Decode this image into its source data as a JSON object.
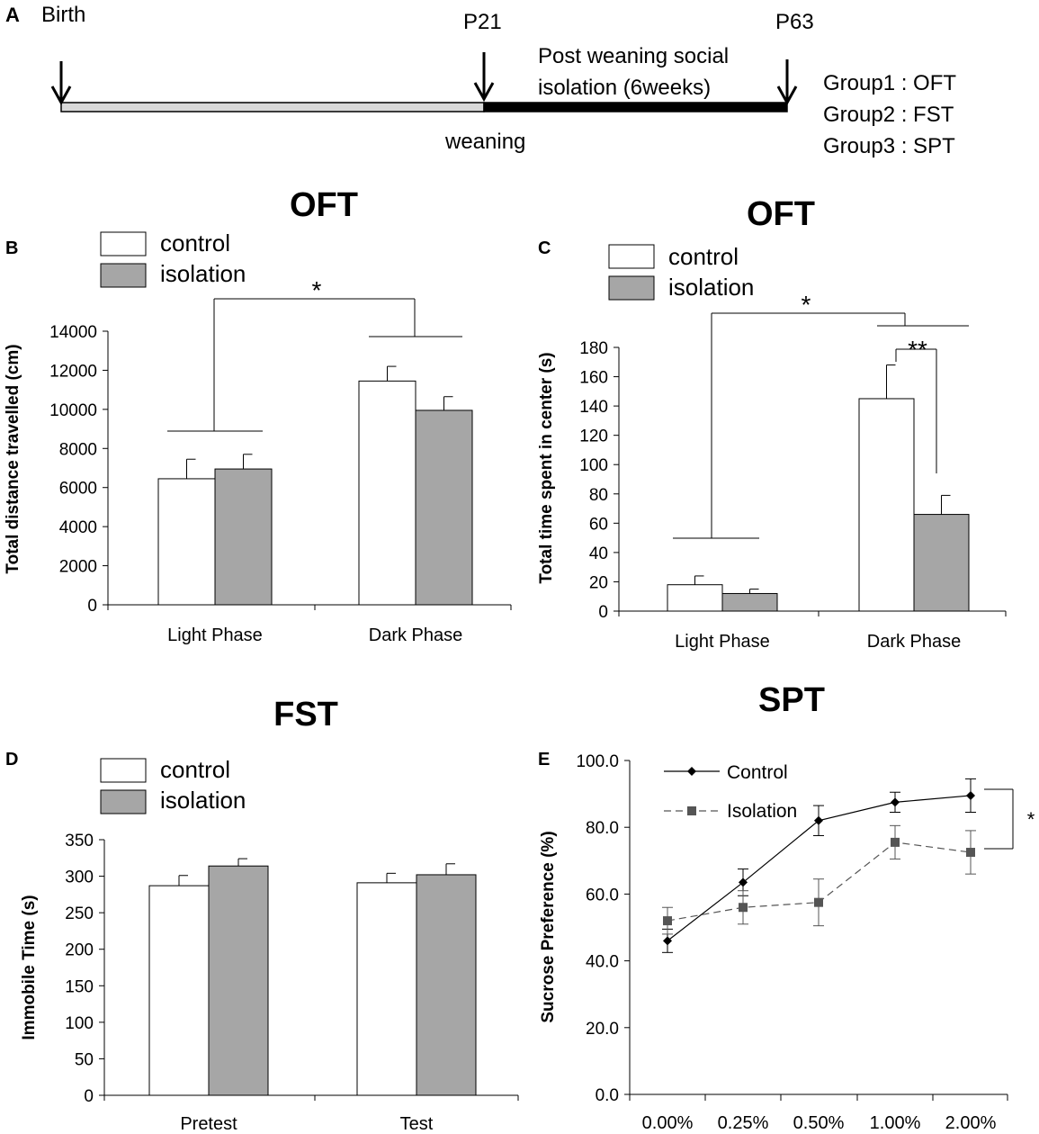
{
  "timeline": {
    "panel_label": "A",
    "birth": "Birth",
    "p21": "P21",
    "p63": "P63",
    "isolation_line1": "Post weaning social",
    "isolation_line2": "isolation (6weeks)",
    "weaning": "weaning",
    "groups": [
      "Group1 :  OFT",
      "Group2 :  FST",
      "Group3 :  SPT"
    ]
  },
  "colors": {
    "control": "#ffffff",
    "isolation": "#a6a6a6",
    "timeline_early": "#d9d9d9",
    "timeline_late": "#000000"
  },
  "chart_data": [
    {
      "id": "B",
      "panel_label": "B",
      "type": "bar",
      "title": "OFT",
      "ylabel": "Total distance travelled (cm)",
      "categories": [
        "Light Phase",
        "Dark Phase"
      ],
      "ylim": [
        0,
        14000
      ],
      "yticks": [
        0,
        2000,
        4000,
        6000,
        8000,
        10000,
        12000,
        14000
      ],
      "series": [
        {
          "name": "control",
          "values": [
            6450,
            11450
          ],
          "errors": [
            1000,
            750
          ]
        },
        {
          "name": "isolation",
          "values": [
            6950,
            9950
          ],
          "errors": [
            750,
            700
          ]
        }
      ],
      "legend": [
        "control",
        "isolation"
      ],
      "annotations": [
        "*"
      ]
    },
    {
      "id": "C",
      "panel_label": "C",
      "type": "bar",
      "title": "OFT",
      "ylabel": "Total time spent in center (s)",
      "categories": [
        "Light Phase",
        "Dark Phase"
      ],
      "ylim": [
        0,
        180
      ],
      "yticks": [
        0,
        20,
        40,
        60,
        80,
        100,
        120,
        140,
        160,
        180
      ],
      "series": [
        {
          "name": "control",
          "values": [
            18,
            145
          ],
          "errors": [
            6,
            23
          ]
        },
        {
          "name": "isolation",
          "values": [
            12,
            66
          ],
          "errors": [
            3,
            13
          ]
        }
      ],
      "legend": [
        "control",
        "isolation"
      ],
      "annotations": [
        "*",
        "**"
      ]
    },
    {
      "id": "D",
      "panel_label": "D",
      "type": "bar",
      "title": "FST",
      "ylabel": "Immobile Time (s)",
      "categories": [
        "Pretest",
        "Test"
      ],
      "ylim": [
        0,
        350
      ],
      "yticks": [
        0,
        50,
        100,
        150,
        200,
        250,
        300,
        350
      ],
      "series": [
        {
          "name": "control",
          "values": [
            287,
            291
          ],
          "errors": [
            14,
            13
          ]
        },
        {
          "name": "isolation",
          "values": [
            314,
            302
          ],
          "errors": [
            10,
            15
          ]
        }
      ],
      "legend": [
        "control",
        "isolation"
      ]
    },
    {
      "id": "E",
      "panel_label": "E",
      "type": "line",
      "title": "SPT",
      "ylabel": "Sucrose Preference (%)",
      "categories": [
        "0.00%",
        "0.25%",
        "0.50%",
        "1.00%",
        "2.00%"
      ],
      "ylim": [
        0,
        100
      ],
      "yticks": [
        "0.0",
        "20.0",
        "40.0",
        "60.0",
        "80.0",
        "100.0"
      ],
      "series": [
        {
          "name": "Control",
          "values": [
            46,
            63.5,
            82,
            87.5,
            89.5
          ],
          "errors": [
            3.5,
            4,
            4.5,
            3,
            5
          ]
        },
        {
          "name": "Isolation",
          "values": [
            52,
            56,
            57.5,
            75.5,
            72.5
          ],
          "errors": [
            4,
            5,
            7,
            5,
            6.5
          ]
        }
      ],
      "legend": [
        "Control",
        "Isolation"
      ],
      "annotations": [
        "*"
      ]
    }
  ]
}
